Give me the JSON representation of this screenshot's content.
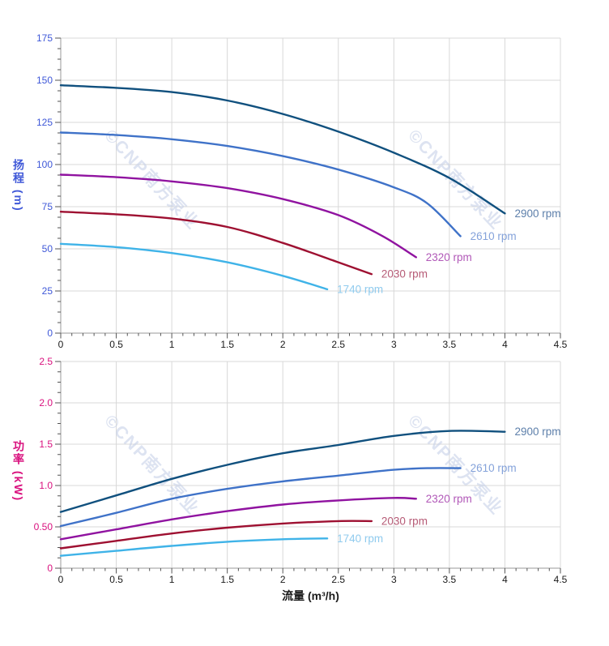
{
  "watermark": {
    "text": "©CNP南方泵业",
    "color": "#c7d1e8"
  },
  "xlabel": "流量 (m³/h)",
  "chart_data": [
    {
      "type": "line",
      "title": "",
      "ylabel": "扬程 (m)",
      "xlabel": "",
      "axis_color": "#3f58d8",
      "xlim": [
        0,
        4.5
      ],
      "ylim": [
        0,
        175
      ],
      "x_major": 0.5,
      "x_minor": 0.1,
      "y_major": 25,
      "y_minor": 6.25,
      "grid": true,
      "legend_position": "end-of-line",
      "x_tick_labels": [
        "0",
        "0.5",
        "1",
        "1.5",
        "2",
        "2.5",
        "3",
        "3.5",
        "4",
        "4.5"
      ],
      "y_tick_labels": [
        "0",
        "25",
        "50",
        "75",
        "100",
        "125",
        "150",
        "175"
      ],
      "series": [
        {
          "name": "2900 rpm",
          "color": "#10507e",
          "label_color": "#5e80ab",
          "points": [
            [
              0,
              147
            ],
            [
              0.5,
              145.5
            ],
            [
              1,
              143
            ],
            [
              1.5,
              138
            ],
            [
              2,
              130
            ],
            [
              2.5,
              119.5
            ],
            [
              3,
              107
            ],
            [
              3.5,
              92
            ],
            [
              4,
              71
            ]
          ]
        },
        {
          "name": "2610 rpm",
          "color": "#3f72c8",
          "label_color": "#84a2da",
          "points": [
            [
              0,
              119
            ],
            [
              0.5,
              117.5
            ],
            [
              1,
              115
            ],
            [
              1.5,
              111
            ],
            [
              2,
              105
            ],
            [
              2.5,
              97
            ],
            [
              3,
              86.5
            ],
            [
              3.3,
              77
            ],
            [
              3.6,
              57.5
            ]
          ]
        },
        {
          "name": "2320 rpm",
          "color": "#9013a0",
          "label_color": "#b158b8",
          "points": [
            [
              0,
              94
            ],
            [
              0.5,
              92.5
            ],
            [
              1,
              90
            ],
            [
              1.5,
              86
            ],
            [
              2,
              79.5
            ],
            [
              2.5,
              70
            ],
            [
              2.9,
              57.5
            ],
            [
              3.2,
              45
            ]
          ]
        },
        {
          "name": "2030 rpm",
          "color": "#9e1031",
          "label_color": "#b65b76",
          "points": [
            [
              0,
              72
            ],
            [
              0.5,
              70.5
            ],
            [
              1,
              68
            ],
            [
              1.5,
              63
            ],
            [
              2,
              53.5
            ],
            [
              2.5,
              42
            ],
            [
              2.8,
              35
            ]
          ]
        },
        {
          "name": "1740 rpm",
          "color": "#3fb3e8",
          "label_color": "#90cbee",
          "points": [
            [
              0,
              53
            ],
            [
              0.5,
              51
            ],
            [
              1,
              47.5
            ],
            [
              1.5,
              42
            ],
            [
              2,
              34
            ],
            [
              2.4,
              26
            ]
          ]
        }
      ]
    },
    {
      "type": "line",
      "title": "",
      "ylabel": "功率 (kW)",
      "xlabel": "流量 (m³/h)",
      "axis_color": "#d9117e",
      "xlim": [
        0,
        4.5
      ],
      "ylim": [
        0,
        2.5
      ],
      "x_major": 0.5,
      "x_minor": 0.1,
      "y_major": 0.5,
      "y_minor": 0.125,
      "grid": true,
      "legend_position": "end-of-line",
      "x_tick_labels": [
        "0",
        "0.5",
        "1",
        "1.5",
        "2",
        "2.5",
        "3",
        "3.5",
        "4",
        "4.5"
      ],
      "y_tick_labels": [
        "0",
        "0.50",
        "1.0",
        "1.5",
        "2.0",
        "2.5"
      ],
      "series": [
        {
          "name": "2900 rpm",
          "color": "#10507e",
          "label_color": "#5e80ab",
          "points": [
            [
              0,
              0.68
            ],
            [
              0.5,
              0.88
            ],
            [
              1,
              1.08
            ],
            [
              1.5,
              1.25
            ],
            [
              2,
              1.39
            ],
            [
              2.5,
              1.49
            ],
            [
              3,
              1.6
            ],
            [
              3.5,
              1.66
            ],
            [
              4,
              1.65
            ]
          ]
        },
        {
          "name": "2610 rpm",
          "color": "#3f72c8",
          "label_color": "#84a2da",
          "points": [
            [
              0,
              0.51
            ],
            [
              0.5,
              0.67
            ],
            [
              1,
              0.84
            ],
            [
              1.5,
              0.96
            ],
            [
              2,
              1.05
            ],
            [
              2.5,
              1.12
            ],
            [
              3,
              1.19
            ],
            [
              3.3,
              1.21
            ],
            [
              3.6,
              1.21
            ]
          ]
        },
        {
          "name": "2320 rpm",
          "color": "#9013a0",
          "label_color": "#b158b8",
          "points": [
            [
              0,
              0.35
            ],
            [
              0.5,
              0.47
            ],
            [
              1,
              0.59
            ],
            [
              1.5,
              0.69
            ],
            [
              2,
              0.77
            ],
            [
              2.5,
              0.82
            ],
            [
              3,
              0.85
            ],
            [
              3.2,
              0.84
            ]
          ]
        },
        {
          "name": "2030 rpm",
          "color": "#9e1031",
          "label_color": "#b65b76",
          "points": [
            [
              0,
              0.24
            ],
            [
              0.5,
              0.33
            ],
            [
              1,
              0.42
            ],
            [
              1.5,
              0.49
            ],
            [
              2,
              0.54
            ],
            [
              2.5,
              0.57
            ],
            [
              2.8,
              0.57
            ]
          ]
        },
        {
          "name": "1740 rpm",
          "color": "#3fb3e8",
          "label_color": "#90cbee",
          "points": [
            [
              0,
              0.15
            ],
            [
              0.5,
              0.21
            ],
            [
              1,
              0.27
            ],
            [
              1.5,
              0.32
            ],
            [
              2,
              0.35
            ],
            [
              2.4,
              0.36
            ]
          ]
        }
      ]
    }
  ]
}
